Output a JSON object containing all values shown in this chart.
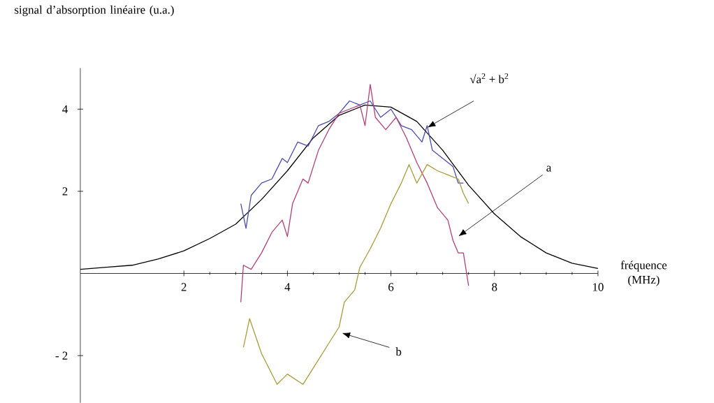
{
  "chart_data": {
    "type": "line",
    "xlabel": "fréquence (MHz)",
    "ylabel": "signal d’absorption linéaire (u.a.)",
    "xlim": [
      0,
      10
    ],
    "ylim": [
      -3.15,
      5
    ],
    "xticks": [
      2,
      4,
      6,
      8,
      10
    ],
    "yticks": [
      {
        "value": -2,
        "label": "- 2"
      },
      2,
      4
    ],
    "grid": false,
    "marker": "none",
    "line_style": "solid",
    "series": [
      {
        "color": "#000000",
        "x": [
          0,
          0.5,
          1,
          1.5,
          2,
          2.5,
          3,
          3.5,
          4,
          4.5,
          5,
          5.5,
          6,
          6.5,
          7,
          7.5,
          8,
          8.5,
          9,
          9.5,
          10
        ],
        "values": [
          0.1,
          0.15,
          0.2,
          0.35,
          0.55,
          0.85,
          1.2,
          1.8,
          2.5,
          3.3,
          3.85,
          4.1,
          4.05,
          3.7,
          3.0,
          2.15,
          1.45,
          0.9,
          0.5,
          0.25,
          0.12
        ]
      },
      {
        "color": "#4b4bb0",
        "x": [
          3.1,
          3.2,
          3.3,
          3.5,
          3.7,
          3.9,
          4.0,
          4.2,
          4.4,
          4.6,
          4.8,
          5.0,
          5.2,
          5.4,
          5.6,
          5.8,
          6.0,
          6.2,
          6.4,
          6.6,
          6.7,
          6.8,
          7.0,
          7.2,
          7.3,
          7.4
        ],
        "values": [
          1.7,
          1.1,
          1.9,
          2.2,
          2.3,
          2.8,
          2.7,
          3.2,
          3.1,
          3.6,
          3.7,
          3.9,
          4.2,
          4.1,
          4.2,
          3.8,
          4.0,
          3.6,
          3.5,
          3.2,
          3.6,
          3.0,
          2.8,
          2.6,
          2.2,
          2.2
        ]
      },
      {
        "color": "#b0407a",
        "x": [
          3.1,
          3.15,
          3.3,
          3.5,
          3.7,
          3.9,
          4.0,
          4.1,
          4.3,
          4.4,
          4.6,
          4.8,
          5.0,
          5.2,
          5.4,
          5.5,
          5.6,
          5.7,
          5.9,
          6.1,
          6.3,
          6.5,
          6.7,
          6.9,
          7.1,
          7.2,
          7.3,
          7.4,
          7.5
        ],
        "values": [
          -0.7,
          0.2,
          0.1,
          0.5,
          1.0,
          1.3,
          0.9,
          1.7,
          2.3,
          2.2,
          3.0,
          3.5,
          3.9,
          4.0,
          4.1,
          3.6,
          4.6,
          3.8,
          3.5,
          3.8,
          3.3,
          2.7,
          2.2,
          1.6,
          1.3,
          0.8,
          0.5,
          0.5,
          -0.3
        ]
      },
      {
        "color": "#a89c3a",
        "x": [
          3.15,
          3.27,
          3.5,
          3.8,
          4.0,
          4.3,
          4.6,
          4.8,
          5.0,
          5.1,
          5.3,
          5.4,
          5.6,
          5.8,
          6.0,
          6.2,
          6.35,
          6.5,
          6.7,
          6.9,
          7.1,
          7.3,
          7.4,
          7.5
        ],
        "values": [
          -1.8,
          -1.1,
          -1.95,
          -2.7,
          -2.45,
          -2.7,
          -2.1,
          -1.7,
          -1.3,
          -0.7,
          -0.4,
          0.15,
          0.6,
          1.1,
          1.7,
          2.2,
          2.65,
          2.2,
          2.65,
          2.5,
          2.4,
          2.3,
          1.95,
          1.7
        ]
      }
    ],
    "annotations": [
      "√a$^{2}$ + b$^{2}$",
      "a",
      "b"
    ]
  }
}
